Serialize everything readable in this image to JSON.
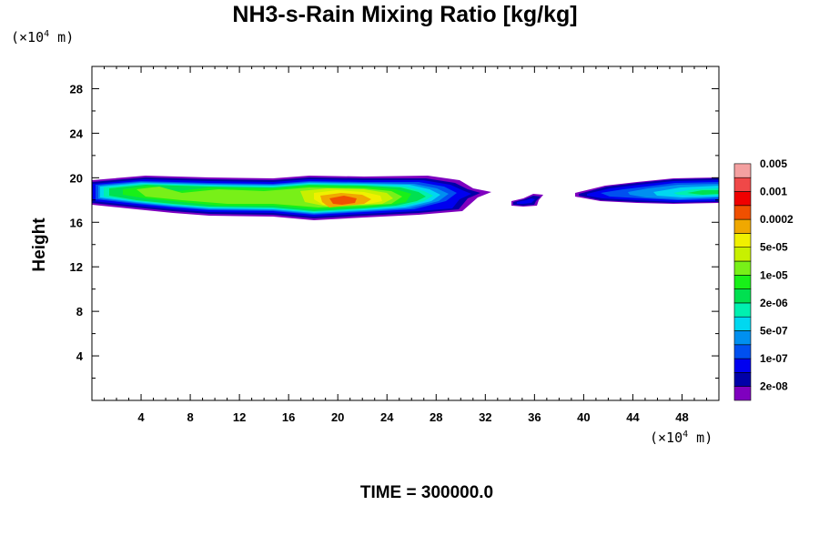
{
  "chart_data": {
    "type": "heatmap",
    "title": "NH3-s-Rain Mixing Ratio [kg/kg]",
    "x_unit": {
      "prefix": "(×10",
      "exp": "4",
      "suffix": " m)"
    },
    "y_unit": {
      "prefix": "(×10",
      "exp": "4",
      "suffix": " m)"
    },
    "ylabel": "Height",
    "footer": "TIME = 300000.0",
    "xlim": [
      0,
      51
    ],
    "ylim": [
      0,
      30
    ],
    "x_ticks": [
      "4",
      "8",
      "12",
      "16",
      "20",
      "24",
      "28",
      "32",
      "36",
      "40",
      "44",
      "48"
    ],
    "y_ticks": [
      "4",
      "8",
      "12",
      "16",
      "20",
      "24",
      "28"
    ],
    "legend": {
      "colors": [
        "#7f00bf",
        "#0000a8",
        "#0000f0",
        "#0050f0",
        "#0090f0",
        "#00d8f0",
        "#00f0b0",
        "#00e050",
        "#18f018",
        "#78f018",
        "#c8f000",
        "#f0f000",
        "#f0a800",
        "#f05000",
        "#f00000",
        "#f04848",
        "#f4a0a0"
      ],
      "labels": [
        "2e-08",
        "1e-07",
        "5e-07",
        "2e-06",
        "1e-05",
        "5e-05",
        "0.0002",
        "0.001",
        "0.005"
      ]
    },
    "features": [
      {
        "x": [
          0,
          32
        ],
        "y": [
          16.5,
          20
        ],
        "peak": "0.0002",
        "core_x": [
          18,
          22
        ]
      },
      {
        "x": [
          34,
          36
        ],
        "y": [
          17.3,
          18.6
        ],
        "peak": "1e-07"
      },
      {
        "x": [
          39,
          51
        ],
        "y": [
          17.4,
          19.9
        ],
        "peak": "2e-06"
      }
    ]
  }
}
